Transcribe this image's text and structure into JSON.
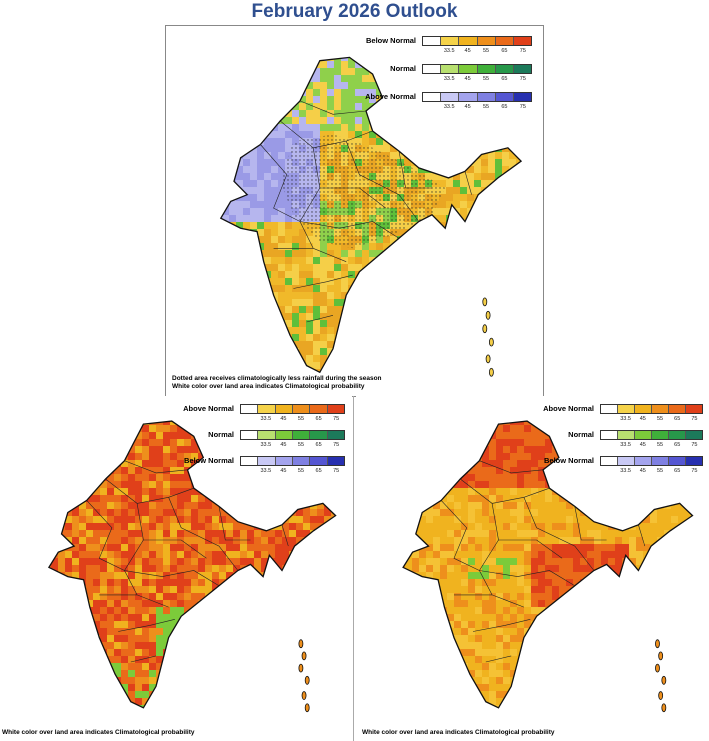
{
  "title": "February 2026 Outlook",
  "ticks": [
    "33.5",
    "45",
    "55",
    "65",
    "75"
  ],
  "panels": {
    "top": {
      "legend": [
        {
          "label": "Below Normal",
          "colors": [
            "#ffffff",
            "#f5d34a",
            "#f0b31f",
            "#ee8f1c",
            "#ea6a1a",
            "#e0401a"
          ]
        },
        {
          "label": "Normal",
          "colors": [
            "#ffffff",
            "#b8e070",
            "#7ccb3a",
            "#3fb03a",
            "#27984a",
            "#1c7a5a"
          ]
        },
        {
          "label": "Above Normal",
          "colors": [
            "#ffffff",
            "#c9c9f5",
            "#a4a4ee",
            "#7f80e2",
            "#5556d2",
            "#2730b0"
          ]
        }
      ],
      "notes": [
        "Dotted area receives climatologically less rainfall during the season",
        "White color over land area indicates Climatological probability"
      ],
      "palette": [
        "#f0b92a",
        "#e9a623",
        "#f5cf48",
        "#8fd04b",
        "#5fbf3a",
        "#b6b6ee",
        "#9a9ae6"
      ]
    },
    "left": {
      "legend": [
        {
          "label": "Above Normal",
          "colors": [
            "#ffffff",
            "#f5d34a",
            "#f0b31f",
            "#ee8f1c",
            "#ea6a1a",
            "#e0401a"
          ]
        },
        {
          "label": "Normal",
          "colors": [
            "#ffffff",
            "#b8e070",
            "#7ccb3a",
            "#3fb03a",
            "#27984a",
            "#1c7a5a"
          ]
        },
        {
          "label": "Below Normal",
          "colors": [
            "#ffffff",
            "#c9c9f5",
            "#a4a4ee",
            "#7f80e2",
            "#5556d2",
            "#2730b0"
          ]
        }
      ],
      "notes": [
        "White color over land area indicates Climatological probability"
      ],
      "palette": [
        "#ea6a1a",
        "#e0401a",
        "#ee8f1c",
        "#f0b31f",
        "#ea6a1a",
        "#e0401a",
        "#7ccb3a"
      ]
    },
    "right": {
      "legend": [
        {
          "label": "Above Normal",
          "colors": [
            "#ffffff",
            "#f5d34a",
            "#f0b31f",
            "#ee8f1c",
            "#ea6a1a",
            "#e0401a"
          ]
        },
        {
          "label": "Normal",
          "colors": [
            "#ffffff",
            "#b8e070",
            "#7ccb3a",
            "#3fb03a",
            "#27984a",
            "#1c7a5a"
          ]
        },
        {
          "label": "Below Normal",
          "colors": [
            "#ffffff",
            "#c9c9f5",
            "#a4a4ee",
            "#7f80e2",
            "#5556d2",
            "#2730b0"
          ]
        }
      ],
      "notes": [
        "White color over land area indicates Climatological probability"
      ],
      "palette": [
        "#f0b31f",
        "#f5c235",
        "#ee8f1c",
        "#ea6a1a",
        "#f0b31f",
        "#e0401a",
        "#7ccb3a"
      ]
    }
  }
}
